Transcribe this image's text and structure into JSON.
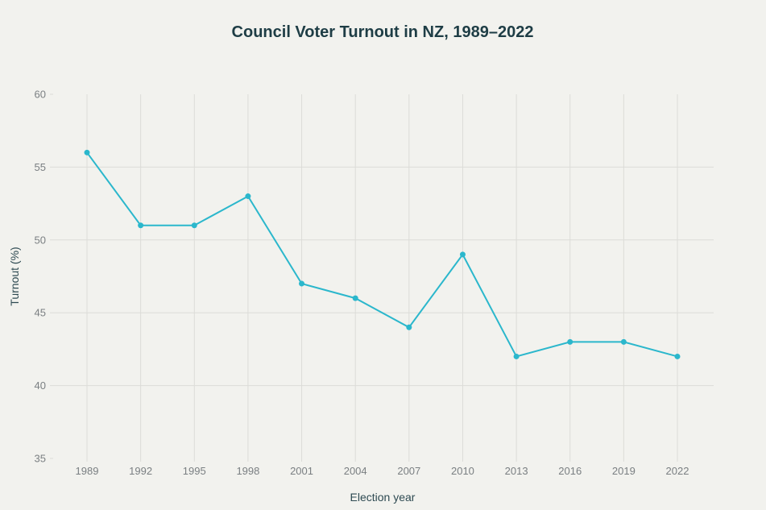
{
  "chart_data": {
    "type": "line",
    "title": "Council Voter Turnout in NZ, 1989–2022",
    "xlabel": "Election year",
    "ylabel": "Turnout (%)",
    "x": [
      "1989",
      "1992",
      "1995",
      "1998",
      "2001",
      "2004",
      "2007",
      "2010",
      "2013",
      "2016",
      "2019",
      "2022"
    ],
    "series": [
      {
        "name": "Turnout",
        "values": [
          56,
          51,
          51,
          53,
          47,
          46,
          44,
          49,
          42,
          43,
          43,
          42
        ],
        "color": "#2bb7cc"
      }
    ],
    "ylim": [
      35,
      60
    ],
    "yticks": [
      "35",
      "40",
      "45",
      "50",
      "55",
      "60"
    ],
    "grid": true,
    "legend": "none"
  }
}
